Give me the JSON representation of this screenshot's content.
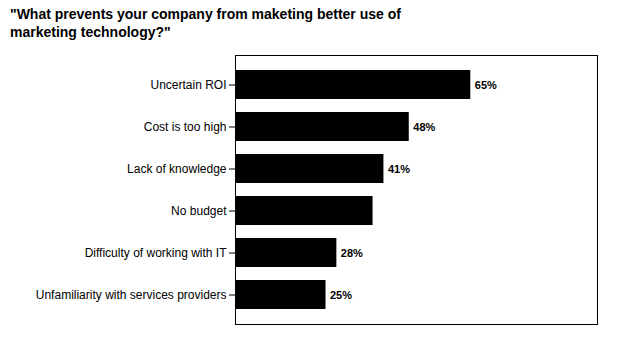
{
  "chart_data": {
    "type": "bar",
    "title": "\"What prevents your company from maketing better use of\nmarketing technology?\"",
    "categories": [
      "Unfamiliarity with services providers",
      "Difficulty of working with IT",
      "No budget",
      "Lack of knowledge",
      "Cost is too high",
      "Uncertain ROI"
    ],
    "values": [
      25,
      28,
      38,
      41,
      48,
      65
    ],
    "value_labels": [
      "25%",
      "28%",
      null,
      "41%",
      "48%",
      "65%"
    ],
    "orientation": "horizontal",
    "xlim": [
      0,
      100
    ],
    "xticks": [],
    "grid": false,
    "data_labels": true,
    "tick_labels": "y"
  }
}
